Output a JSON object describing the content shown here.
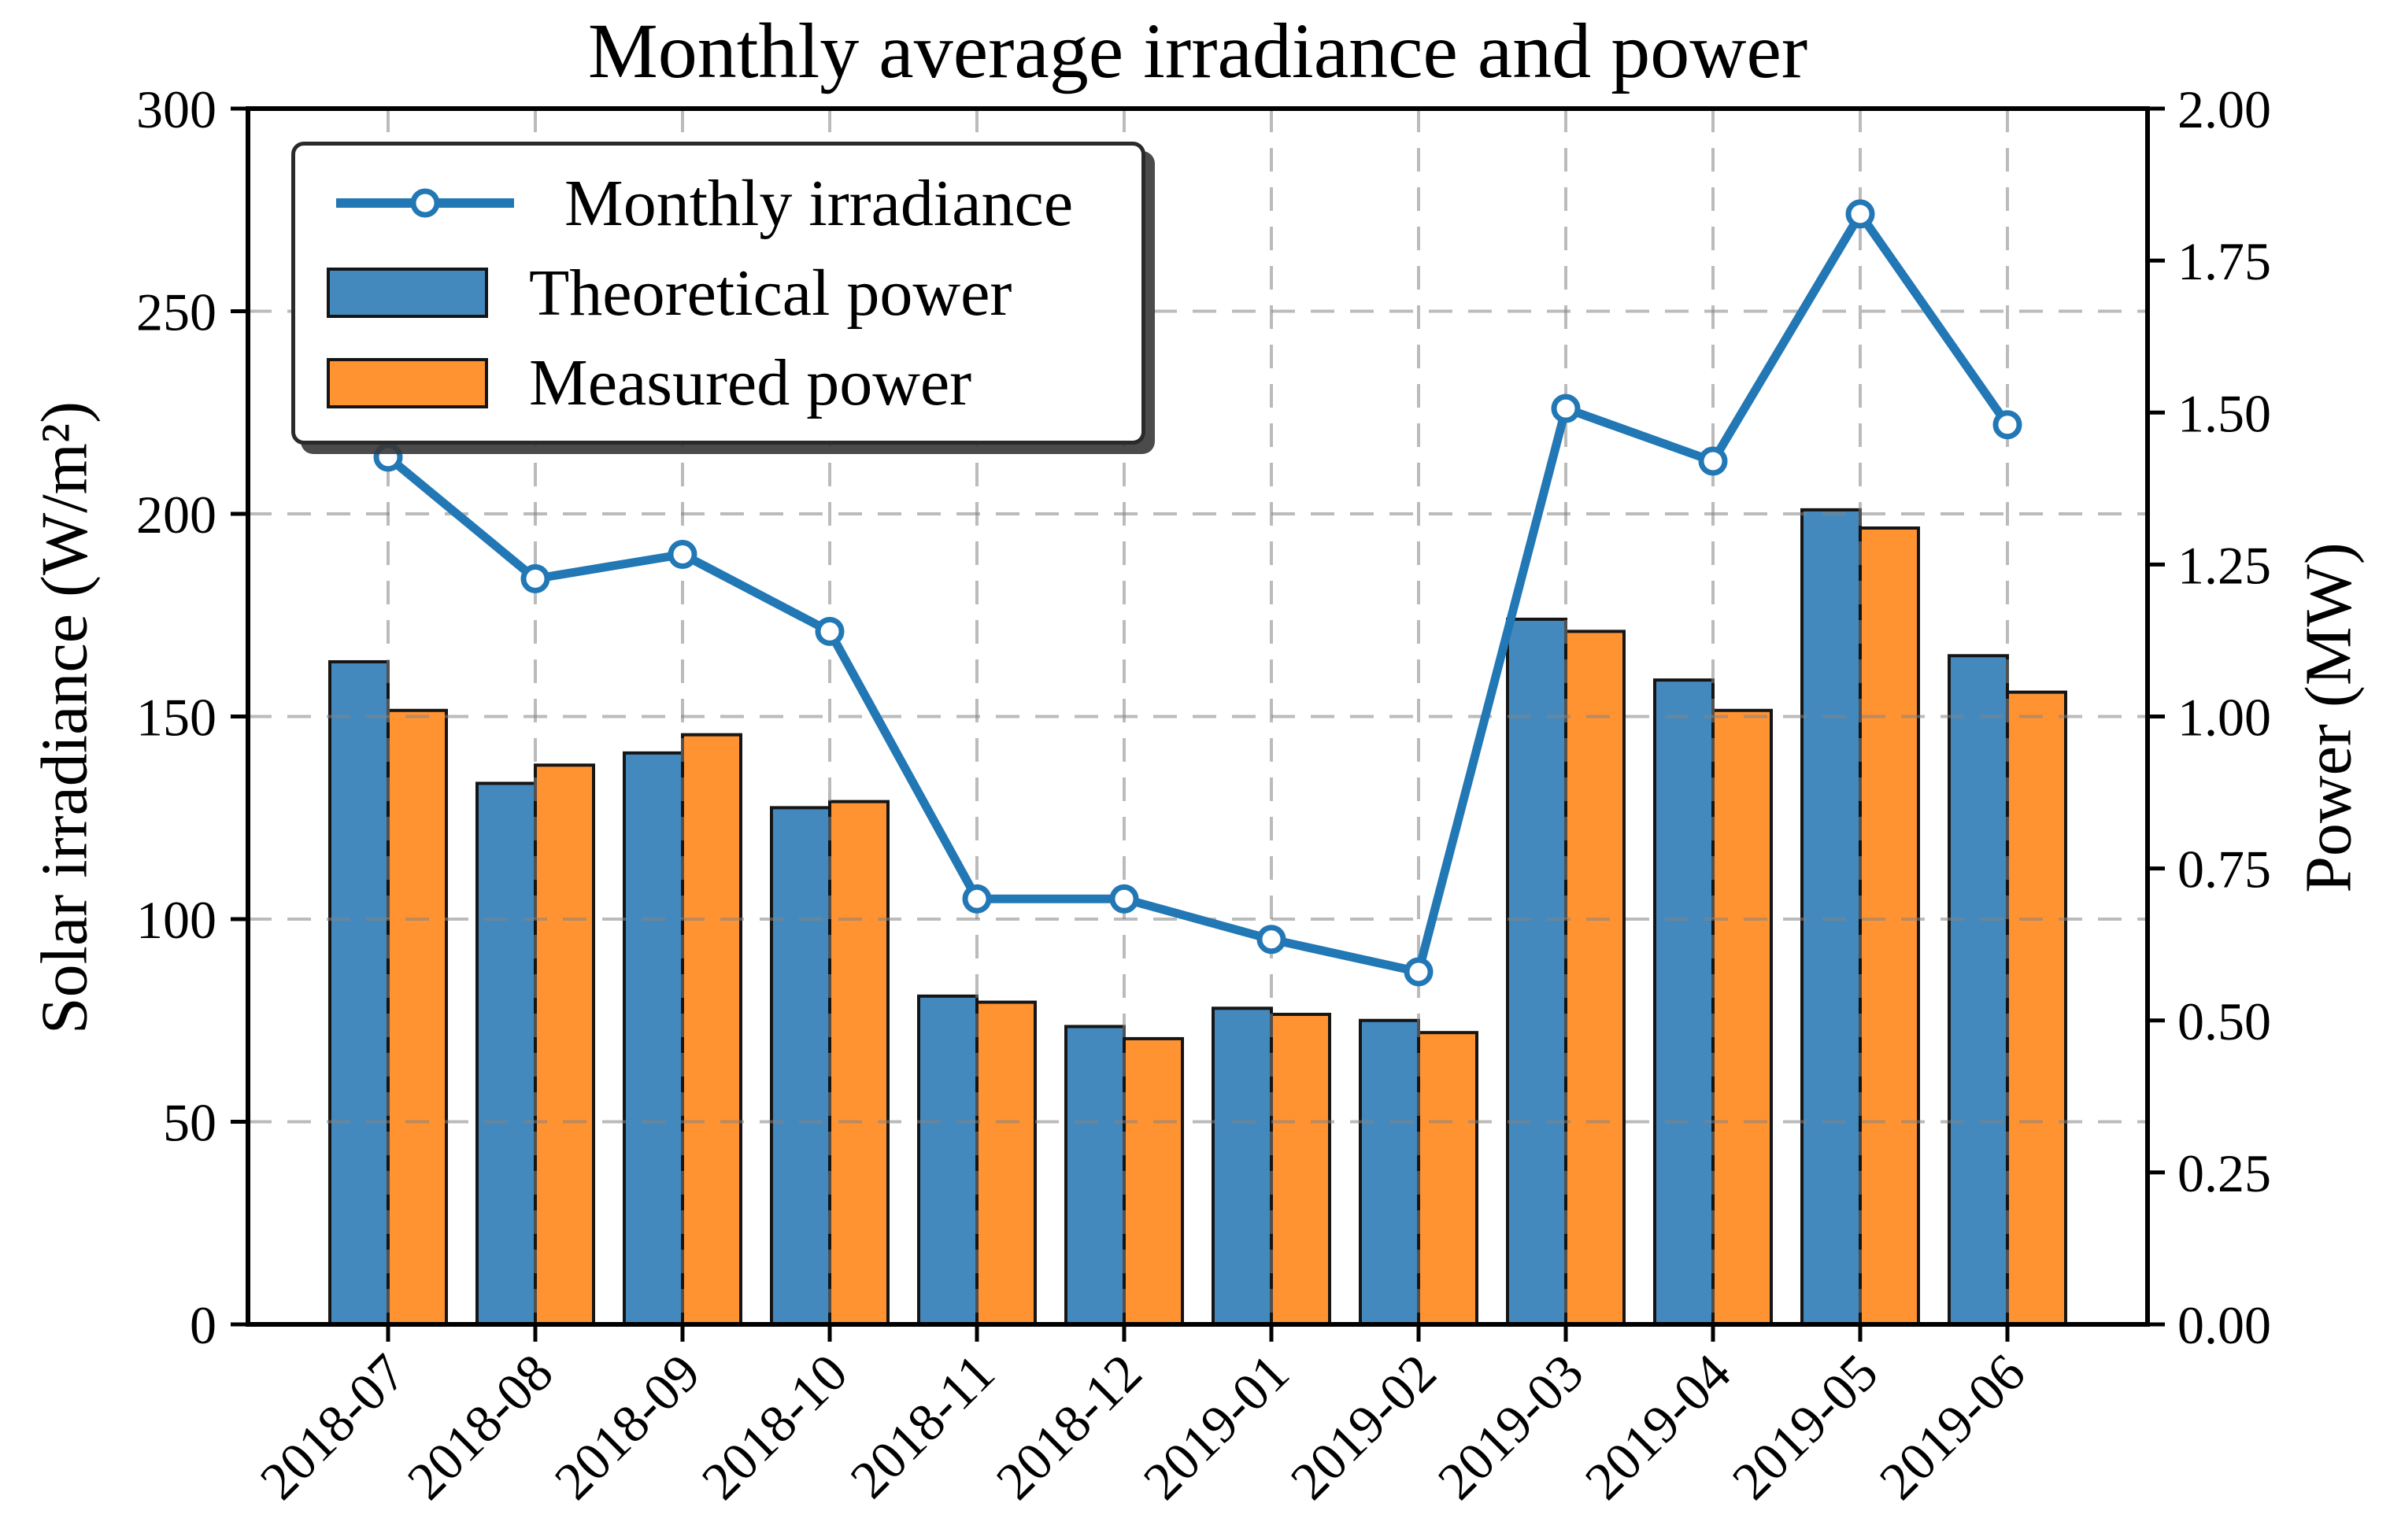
{
  "chart_data": {
    "type": "bar",
    "subtype": "grouped-bars-with-line-dual-axis",
    "title": "Monthly average irradiance and power",
    "categories": [
      "2018-07",
      "2018-08",
      "2018-09",
      "2018-10",
      "2018-11",
      "2018-12",
      "2019-01",
      "2019-02",
      "2019-03",
      "2019-04",
      "2019-05",
      "2019-06"
    ],
    "series": [
      {
        "name": "Monthly irradiance",
        "type": "line",
        "axis": "left",
        "unit": "W/m²",
        "marker": "open-circle",
        "color": "#2277b5",
        "values": [
          214,
          184,
          190,
          171,
          105,
          105,
          95,
          87,
          226,
          213,
          274,
          222
        ]
      },
      {
        "name": "Theoretical power",
        "type": "bar",
        "axis": "right",
        "unit": "MW",
        "color": "#4489be",
        "values": [
          1.09,
          0.89,
          0.94,
          0.85,
          0.54,
          0.49,
          0.52,
          0.5,
          1.16,
          1.06,
          1.34,
          1.1
        ]
      },
      {
        "name": "Measured power",
        "type": "bar",
        "axis": "right",
        "unit": "MW",
        "color": "#ff9332",
        "values": [
          1.01,
          0.92,
          0.97,
          0.86,
          0.53,
          0.47,
          0.51,
          0.48,
          1.14,
          1.01,
          1.31,
          1.04
        ]
      }
    ],
    "left_axis": {
      "label": "Solar irradiance (W/m²)",
      "range": [
        0,
        300
      ],
      "ticks": [
        0,
        50,
        100,
        150,
        200,
        250,
        300
      ],
      "tick_labels": [
        "0",
        "50",
        "100",
        "150",
        "200",
        "250",
        "300"
      ]
    },
    "right_axis": {
      "label": "Power (MW)",
      "range": [
        0,
        2
      ],
      "ticks": [
        0,
        0.25,
        0.5,
        0.75,
        1,
        1.25,
        1.5,
        1.75,
        2
      ],
      "tick_labels": [
        "0.00",
        "0.25",
        "0.50",
        "0.75",
        "1.00",
        "1.25",
        "1.50",
        "1.75",
        "2.00"
      ]
    },
    "x_axis": {
      "tick_label_rotation_deg": 45
    },
    "grid": {
      "style": "dashed",
      "color": "#c4c4c4",
      "horizontal_at_left_ticks": true,
      "vertical_at_categories": true
    },
    "legend_position": "upper left",
    "colors": {
      "line": "#2277b5",
      "bar_theoretical": "#4489be",
      "bar_measured": "#ff9332",
      "bar_edge": "#151515",
      "axes": "#000000"
    }
  }
}
